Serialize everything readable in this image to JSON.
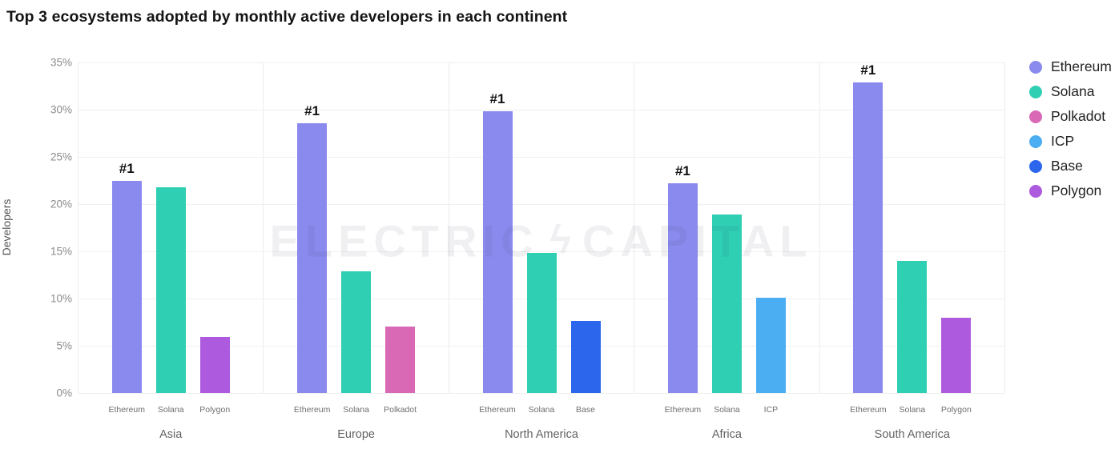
{
  "title": "Top 3 ecosystems adopted by monthly active developers in each continent",
  "watermark": {
    "text_left": "ELECTRIC",
    "text_right": "CAPITAL",
    "bolt_char": "ϟ"
  },
  "chart_data": {
    "type": "bar",
    "title": "Top 3 ecosystems adopted by monthly active developers in each continent",
    "ylabel": "Developers",
    "xlabel": "",
    "ylim": [
      0,
      35
    ],
    "grid": true,
    "legend_position": "right",
    "yticks_top_to_bottom": [
      "35%",
      "30%",
      "25%",
      "20%",
      "15%",
      "10%",
      "5%",
      "0%"
    ],
    "rank_annotation": "#1",
    "legend": [
      {
        "label": "Ethereum",
        "color": "#8a8aee"
      },
      {
        "label": "Solana",
        "color": "#2fcfb4"
      },
      {
        "label": "Polkadot",
        "color": "#d968b5"
      },
      {
        "label": "ICP",
        "color": "#4badf2"
      },
      {
        "label": "Base",
        "color": "#2b66ed"
      },
      {
        "label": "Polygon",
        "color": "#ad5ade"
      }
    ],
    "groups": [
      {
        "continent": "Asia",
        "bars": [
          {
            "ecosystem": "Ethereum",
            "value": 22.5,
            "rank1": true
          },
          {
            "ecosystem": "Solana",
            "value": 21.8,
            "rank1": false
          },
          {
            "ecosystem": "Polygon",
            "value": 5.9,
            "rank1": false
          }
        ]
      },
      {
        "continent": "Europe",
        "bars": [
          {
            "ecosystem": "Ethereum",
            "value": 28.6,
            "rank1": true
          },
          {
            "ecosystem": "Solana",
            "value": 12.9,
            "rank1": false
          },
          {
            "ecosystem": "Polkadot",
            "value": 7.0,
            "rank1": false
          }
        ]
      },
      {
        "continent": "North America",
        "bars": [
          {
            "ecosystem": "Ethereum",
            "value": 29.8,
            "rank1": true
          },
          {
            "ecosystem": "Solana",
            "value": 14.8,
            "rank1": false
          },
          {
            "ecosystem": "Base",
            "value": 7.6,
            "rank1": false
          }
        ]
      },
      {
        "continent": "Africa",
        "bars": [
          {
            "ecosystem": "Ethereum",
            "value": 22.2,
            "rank1": true
          },
          {
            "ecosystem": "Solana",
            "value": 18.9,
            "rank1": false
          },
          {
            "ecosystem": "ICP",
            "value": 10.1,
            "rank1": false
          }
        ]
      },
      {
        "continent": "South America",
        "bars": [
          {
            "ecosystem": "Ethereum",
            "value": 33.9,
            "rank1": true
          },
          {
            "ecosystem": "Solana",
            "value": 14.0,
            "rank1": false
          },
          {
            "ecosystem": "Polygon",
            "value": 8.0,
            "rank1": false
          }
        ]
      }
    ]
  }
}
